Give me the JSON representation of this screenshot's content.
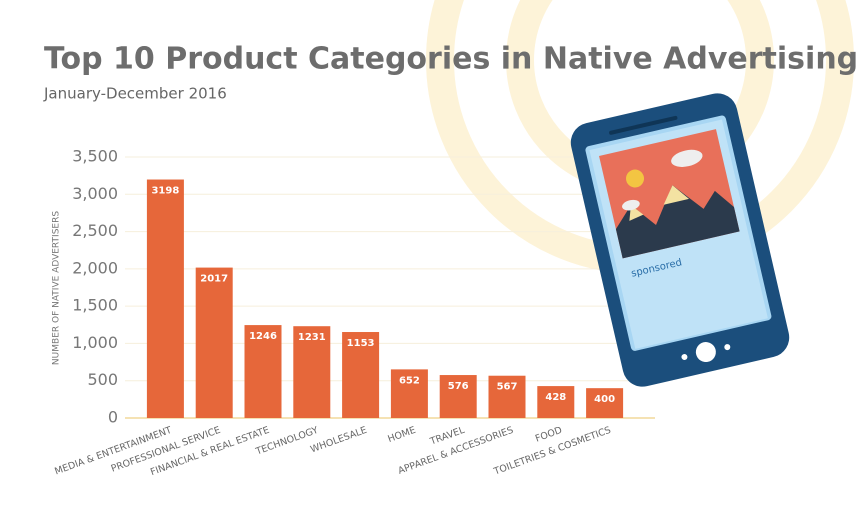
{
  "chart_data": {
    "type": "bar",
    "title": "Top 10 Product Categories in Native Advertising",
    "subtitle": "January-December 2016",
    "y_label": "NUMBER OF NATIVE ADVERTISERS",
    "categories": [
      "MEDIA & ENTERTAINMENT",
      "PROFESSIONAL SERVICE",
      "FINANCIAL & REAL ESTATE",
      "TECHNOLOGY",
      "WHOLESALE",
      "HOME",
      "TRAVEL",
      "APPAREL & ACCESSORIES",
      "FOOD",
      "TOILETRIES & COSMETICS"
    ],
    "values": [
      3198,
      2017,
      1246,
      1231,
      1153,
      652,
      576,
      567,
      428,
      400
    ],
    "color": "#e6673a",
    "ylim": [
      0,
      3500
    ],
    "yticks": [
      0,
      500,
      {
        "value": 1000,
        "label": "1,000"
      },
      {
        "value": 1500,
        "label": "1,500"
      },
      {
        "value": 2000,
        "label": "2,000"
      },
      {
        "value": 2500,
        "label": "2,500"
      },
      {
        "value": 3000,
        "label": "3,000"
      },
      {
        "value": 3500,
        "label": "3,500"
      }
    ],
    "grid": true,
    "illustration_text": "sponsored"
  }
}
